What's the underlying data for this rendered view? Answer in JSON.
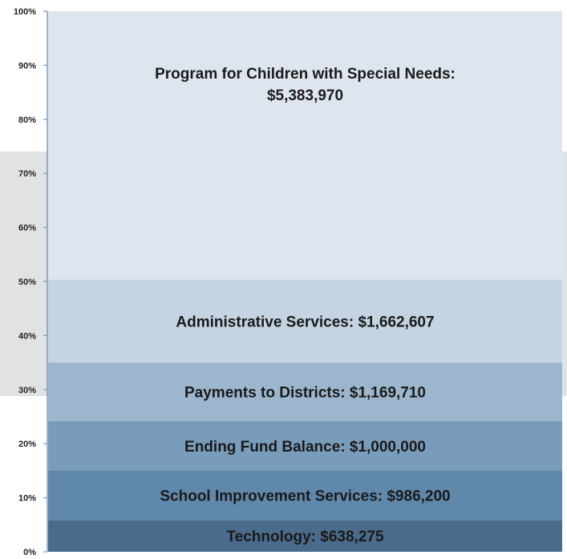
{
  "chart_data": {
    "type": "bar",
    "subtype": "100% stacked",
    "title": "",
    "xlabel": "",
    "ylabel": "",
    "ylim": [
      0,
      100
    ],
    "y_ticks": [
      "0%",
      "10%",
      "20%",
      "30%",
      "40%",
      "50%",
      "60%",
      "70%",
      "80%",
      "90%",
      "100%"
    ],
    "grid": false,
    "legend": "none",
    "segments": [
      {
        "label": "Technology:  $638,275",
        "value": 638275,
        "color": "#4a6b8c",
        "text_color": "#1a1a1a"
      },
      {
        "label": "School Improvement Services:  $986,200",
        "value": 986200,
        "color": "#5f88ab",
        "text_color": "#1a1a1a"
      },
      {
        "label": "Ending Fund Balance:  $1,000,000",
        "value": 1000000,
        "color": "#7a9cbb",
        "text_color": "#1a1a1a"
      },
      {
        "label": "Payments to Districts:  $1,169,710",
        "value": 1169710,
        "color": "#9bb6cd",
        "text_color": "#1a1a1a"
      },
      {
        "label": "Administrative Services:  $1,662,607",
        "value": 1662607,
        "color": "#c4d4e2",
        "text_color": "#1a1a1a"
      },
      {
        "label": "Program for Children with Special Needs:\n$5,383,970",
        "value": 5383970,
        "color": "#dde5ee",
        "text_color": "#1a1a1a"
      }
    ],
    "background_band_color": "#e1e2e4",
    "axis_color": "#7f9ab5",
    "tick_label_color": "#222222"
  }
}
